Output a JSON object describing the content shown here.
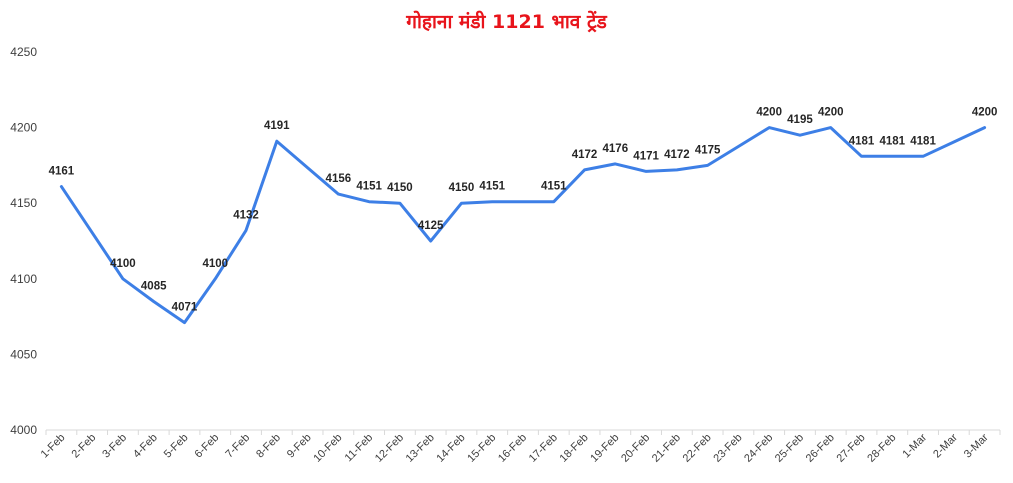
{
  "chart_data": {
    "type": "line",
    "title": "गोहाना मंडी 1121 भाव ट्रेंड",
    "xlabel": "",
    "ylabel": "",
    "ylim": [
      4000,
      4250
    ],
    "yticks": [
      4000,
      4050,
      4100,
      4150,
      4200,
      4250
    ],
    "grid": false,
    "legend": "none",
    "categories": [
      "1-Feb",
      "2-Feb",
      "3-Feb",
      "4-Feb",
      "5-Feb",
      "6-Feb",
      "7-Feb",
      "8-Feb",
      "9-Feb",
      "10-Feb",
      "11-Feb",
      "12-Feb",
      "13-Feb",
      "14-Feb",
      "15-Feb",
      "16-Feb",
      "17-Feb",
      "18-Feb",
      "19-Feb",
      "20-Feb",
      "21-Feb",
      "22-Feb",
      "23-Feb",
      "24-Feb",
      "25-Feb",
      "26-Feb",
      "27-Feb",
      "28-Feb",
      "1-Mar",
      "2-Mar",
      "3-Mar"
    ],
    "values": [
      4161,
      4130.5,
      4100,
      4085,
      4071,
      4100,
      4132,
      4191,
      4173.5,
      4156,
      4151,
      4150,
      4125,
      4150,
      4151,
      4151,
      4151,
      4172,
      4176,
      4171,
      4172,
      4175,
      4187.5,
      4200,
      4195,
      4200,
      4181,
      4181,
      4181,
      4190.5,
      4200
    ],
    "data_labels": [
      "4161",
      "",
      "4100",
      "4085",
      "4071",
      "4100",
      "4132",
      "4191",
      "",
      "4156",
      "4151",
      "4150",
      "4125",
      "4150",
      "4151",
      "",
      "4151",
      "4172",
      "4176",
      "4171",
      "4172",
      "4175",
      "",
      "4200",
      "4195",
      "4200",
      "4181",
      "4181",
      "4181",
      "",
      "4200"
    ],
    "colors": {
      "line": "#3d7fe6",
      "title": "#e8141b",
      "axis": "#d9d9d9",
      "text": "#404040"
    }
  }
}
